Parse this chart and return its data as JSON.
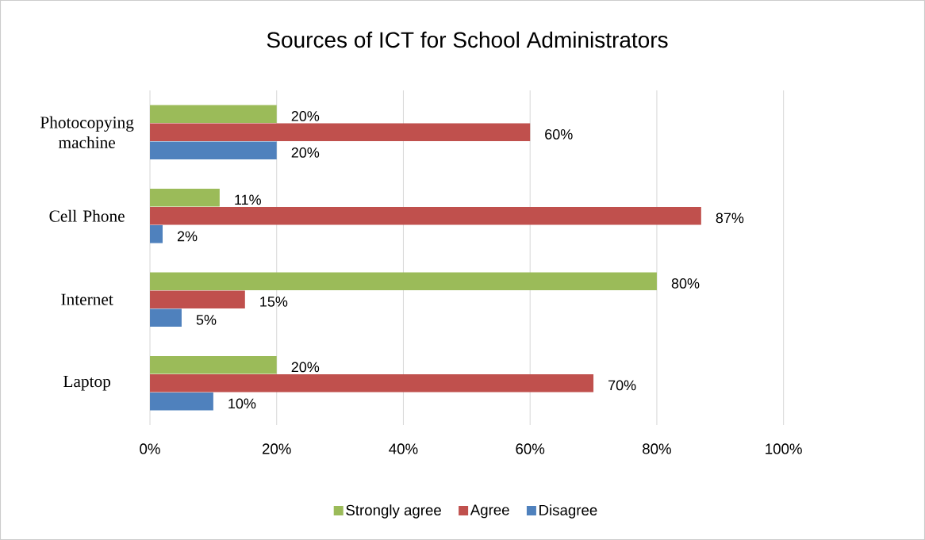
{
  "chart_data": {
    "type": "bar",
    "orientation": "horizontal",
    "title": "Sources of  ICT for School Administrators",
    "categories": [
      "Photocopying machine",
      "Cell Phone",
      "Internet",
      "Laptop"
    ],
    "series": [
      {
        "name": "Strongly agree",
        "color": "#9bbb59",
        "values": [
          20,
          11,
          80,
          20
        ],
        "value_labels": [
          "20%",
          "11%",
          "80%",
          "20%"
        ]
      },
      {
        "name": "Agree",
        "color": "#c0504d",
        "values": [
          60,
          87,
          15,
          70
        ],
        "value_labels": [
          "60%",
          "87%",
          "15%",
          "70%"
        ]
      },
      {
        "name": "Disagree",
        "color": "#4f81bd",
        "values": [
          20,
          2,
          5,
          10
        ],
        "value_labels": [
          "20%",
          "2%",
          "5%",
          "10%"
        ]
      }
    ],
    "xlim": [
      0,
      100
    ],
    "xticks": [
      {
        "value": 0,
        "label": "0%"
      },
      {
        "value": 20,
        "label": "20%"
      },
      {
        "value": 40,
        "label": "40%"
      },
      {
        "value": 60,
        "label": "60%"
      },
      {
        "value": 80,
        "label": "80%"
      },
      {
        "value": 100,
        "label": "100%"
      }
    ],
    "grid": "x",
    "legend": "bottom"
  }
}
